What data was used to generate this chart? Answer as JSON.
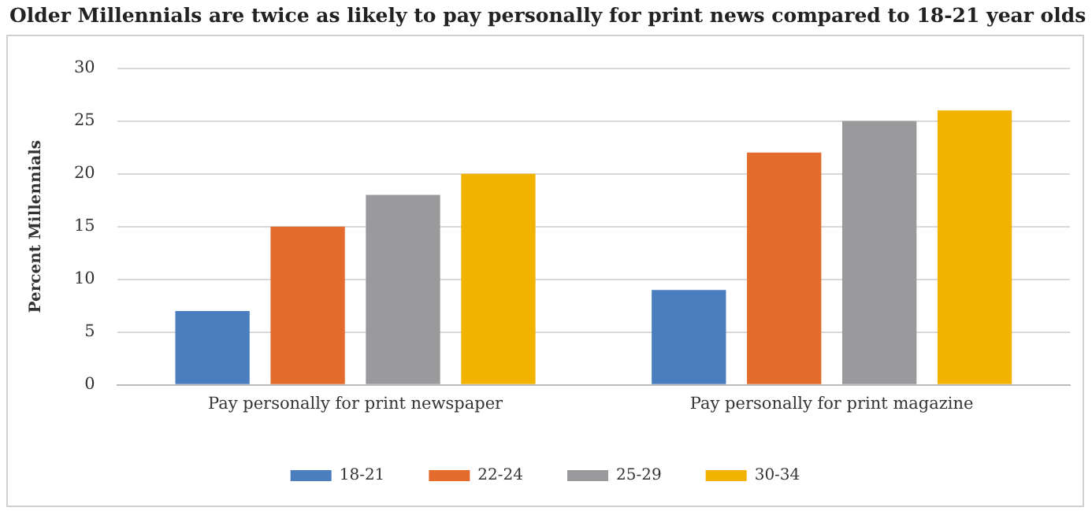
{
  "chart_data": {
    "type": "bar",
    "title": "Older Millennials are twice as likely to pay personally for print news compared to 18-21 year olds",
    "ylabel": "Percent Millennials",
    "categories": [
      "Pay personally for print newspaper",
      "Pay personally for print magazine"
    ],
    "series": [
      {
        "name": "18-21",
        "color": "#4a7ebf",
        "values": [
          7,
          9
        ]
      },
      {
        "name": "22-24",
        "color": "#e36b2c",
        "values": [
          15,
          22
        ]
      },
      {
        "name": "25-29",
        "color": "#9a9a9c",
        "values": [
          18,
          25
        ]
      },
      {
        "name": "30-34",
        "color": "#f2b200",
        "values": [
          20,
          26
        ]
      }
    ],
    "ylim": [
      0,
      30
    ],
    "yticks": [
      0,
      5,
      10,
      15,
      20,
      25,
      30
    ],
    "grid": "y",
    "legend": "bottom"
  }
}
